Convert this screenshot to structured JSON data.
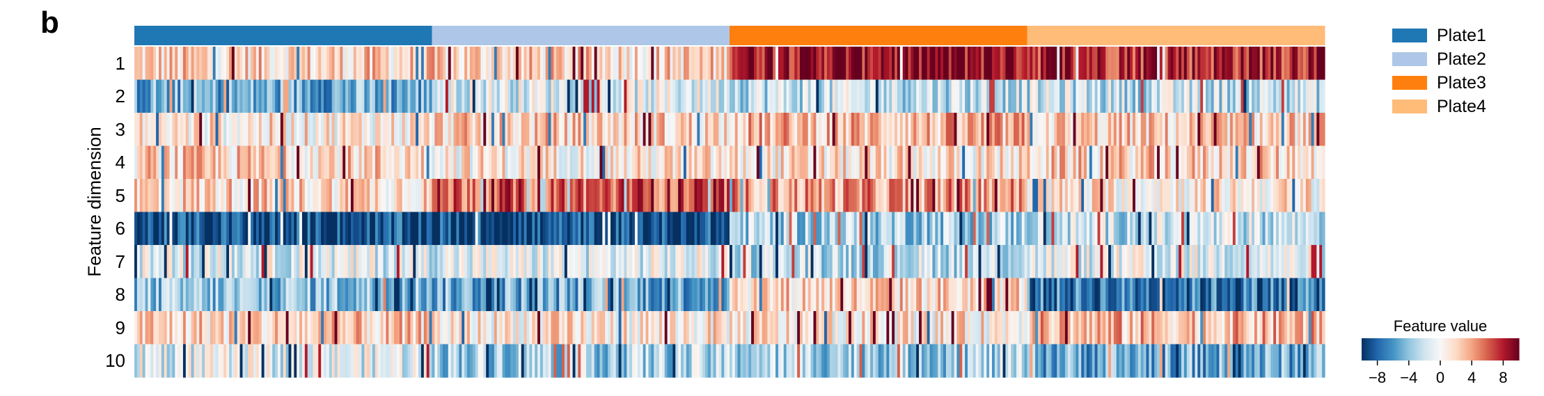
{
  "panel_label": "b",
  "chart_data": {
    "type": "heatmap",
    "ylabel": "Feature dimension",
    "rows": [
      "1",
      "2",
      "3",
      "4",
      "5",
      "6",
      "7",
      "8",
      "9",
      "10"
    ],
    "groups": [
      {
        "name": "Plate1",
        "color": "#1f77b4"
      },
      {
        "name": "Plate2",
        "color": "#aec7e8"
      },
      {
        "name": "Plate3",
        "color": "#ff7f0e"
      },
      {
        "name": "Plate4",
        "color": "#ffbb78"
      }
    ],
    "columns_per_group": 110,
    "group_row_means": [
      [
        2,
        -5,
        1,
        2,
        2,
        -9,
        -1,
        -4,
        2,
        -1
      ],
      [
        2,
        -1,
        2,
        1,
        6,
        -9,
        -1,
        -5,
        1,
        -3
      ],
      [
        9,
        -2,
        3,
        1,
        4,
        -3,
        -2,
        2,
        1,
        -3
      ],
      [
        8,
        -2,
        2,
        2,
        1,
        -2,
        -1,
        -7,
        3,
        -5
      ]
    ],
    "colorbar": {
      "title": "Feature value",
      "range": [
        -10,
        10
      ],
      "ticks": [
        -8,
        -4,
        0,
        4,
        8
      ],
      "tick_labels": [
        "−8",
        "−4",
        "0",
        "4",
        "8"
      ],
      "colormap": "RdBu_r"
    },
    "legend_position": "top-right"
  }
}
